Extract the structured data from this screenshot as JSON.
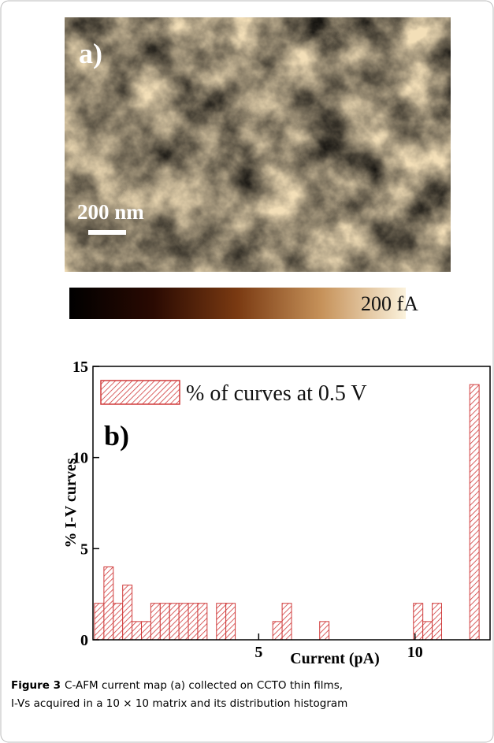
{
  "image_panel": {
    "label": "a)",
    "scale_bar": "200 nm",
    "colorbar_label": "200 fA"
  },
  "chart_data": {
    "type": "histogram",
    "panel_label": "b)",
    "series_name": "% of curves at 0.5 V",
    "color": "#d03a3a",
    "x_label": "Current (pA)",
    "y_label": "% I-V curves",
    "bins": [
      -0.25,
      0.05,
      0.35,
      0.65,
      0.95,
      1.25,
      1.55,
      1.85,
      2.15,
      2.45,
      2.75,
      3.05,
      3.35,
      3.65,
      3.95,
      4.25,
      4.55,
      4.85,
      5.15,
      5.45,
      5.75,
      6.05,
      6.35,
      6.65,
      6.95,
      7.25,
      7.55,
      7.85,
      8.15,
      8.45,
      8.75,
      9.05,
      9.35,
      9.65,
      9.95,
      10.25,
      10.55,
      10.85,
      11.15,
      11.45,
      11.75,
      12.05
    ],
    "values": [
      2,
      4,
      2,
      3,
      1,
      1,
      2,
      2,
      2,
      2,
      2,
      2,
      0,
      2,
      2,
      0,
      0,
      0,
      0,
      1,
      2,
      0,
      0,
      0,
      1,
      0,
      0,
      0,
      0,
      0,
      0,
      0,
      0,
      0,
      2,
      1,
      2,
      0,
      0,
      0,
      14
    ],
    "xlim": [
      -0.3,
      12.4
    ],
    "ylim": [
      0,
      15
    ],
    "xticks": [
      5,
      10
    ],
    "yticks": [
      0,
      5,
      10,
      15
    ],
    "legend": "upper left"
  },
  "caption": {
    "label": "Figure 3",
    "lines": [
      "C-AFM current map (a) collected on CCTO thin films,",
      "I-Vs acquired in a 10 × 10 matrix and its distribution histogram"
    ]
  }
}
